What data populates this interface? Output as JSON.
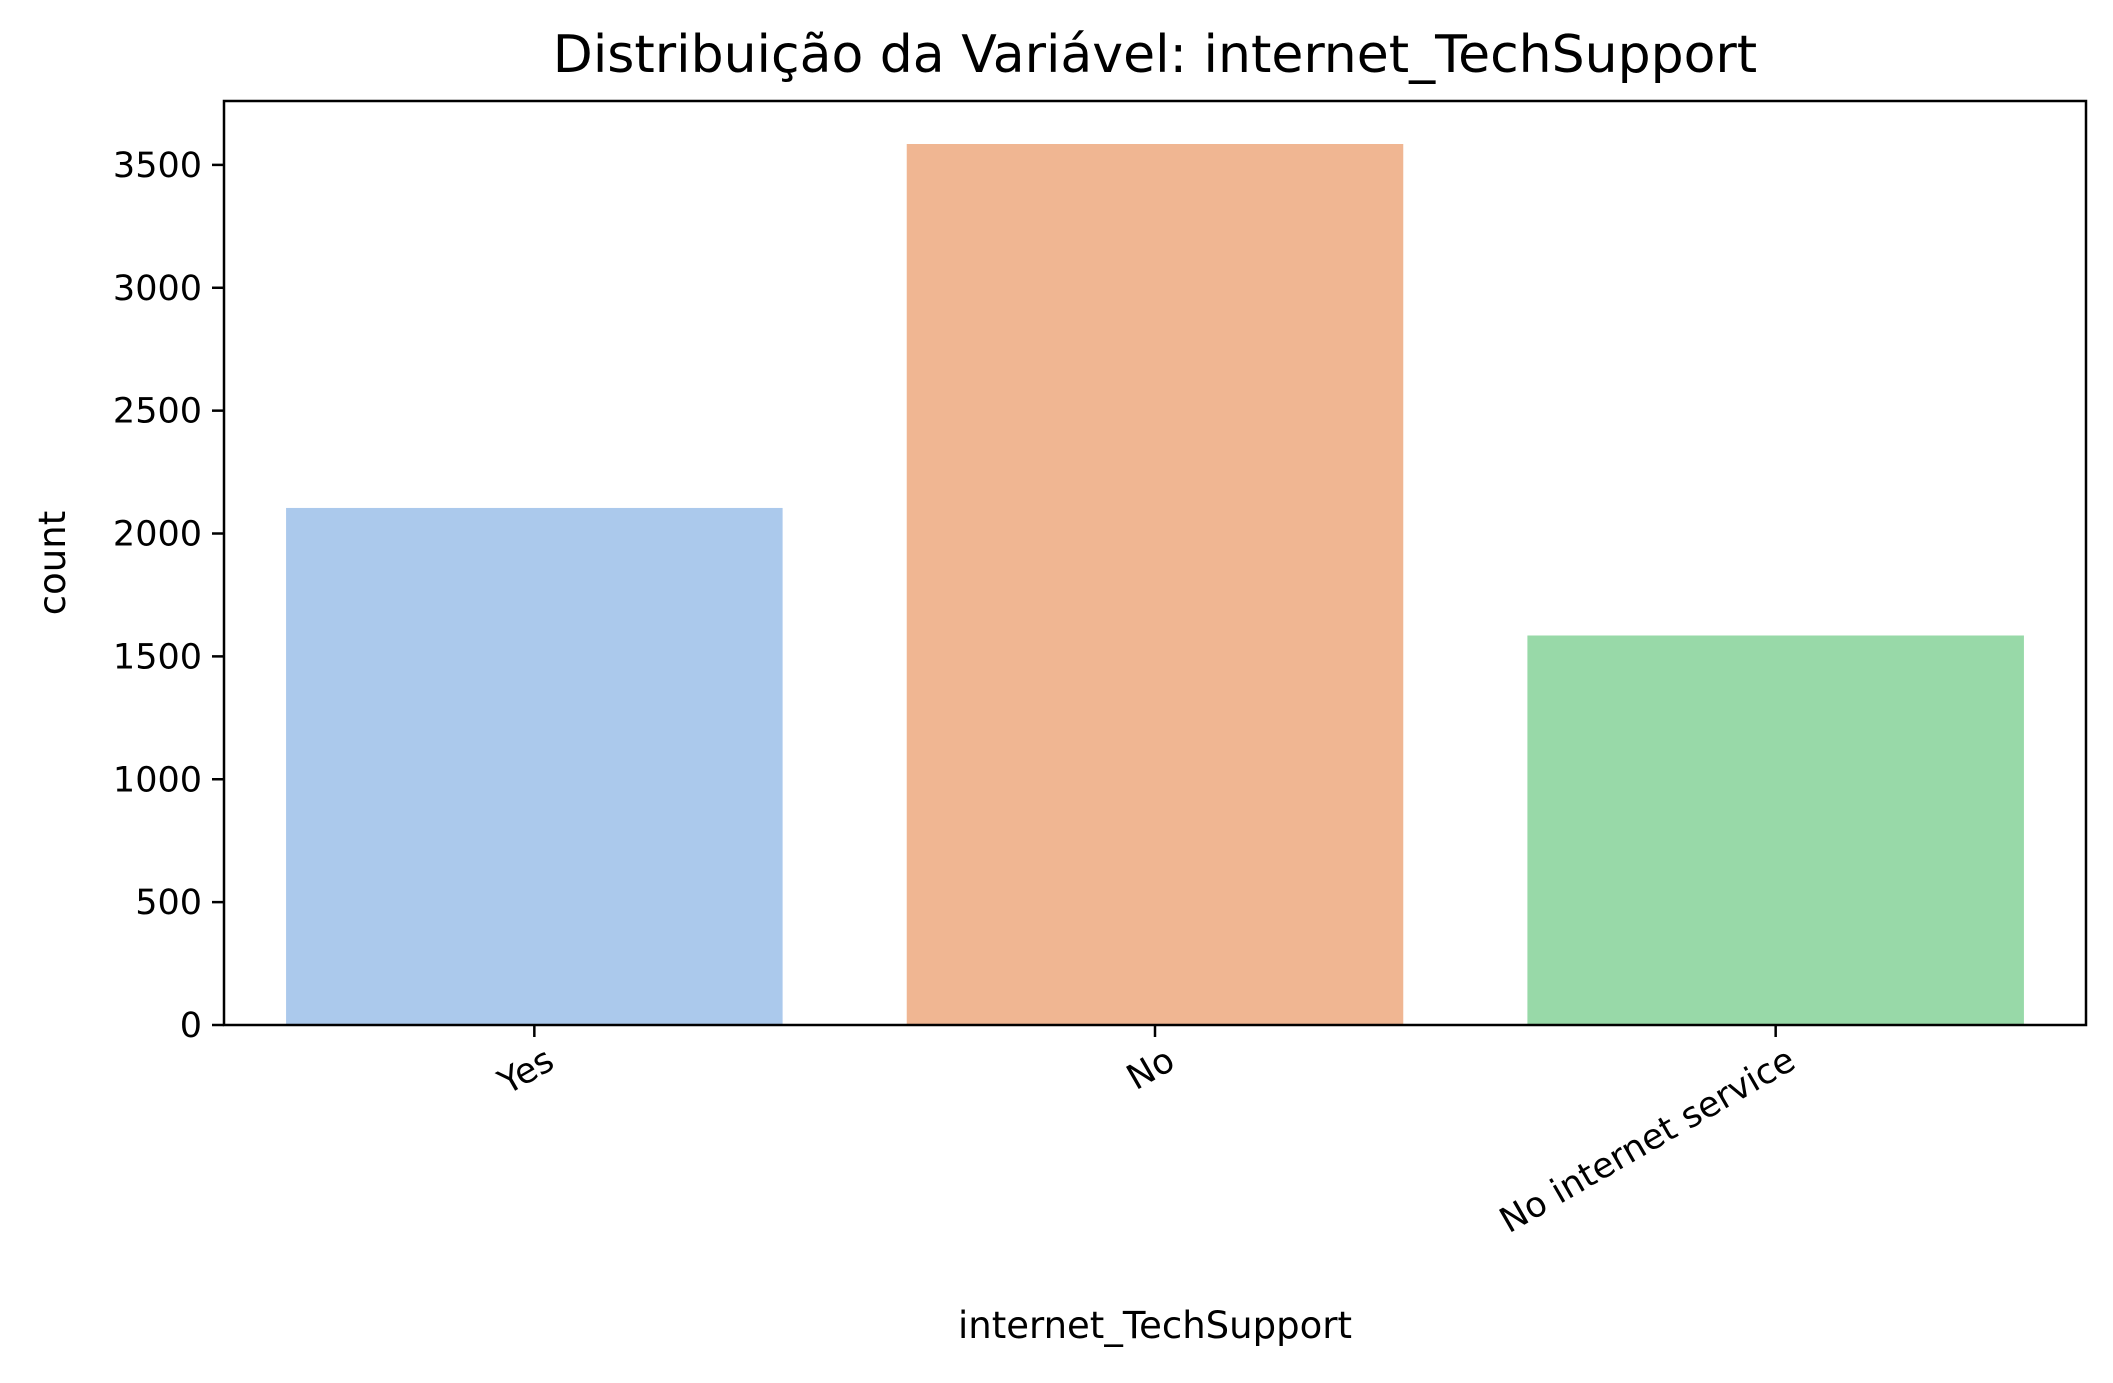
{
  "chart_data": {
    "type": "bar",
    "title": "Distribuição da Variável: internet_TechSupport",
    "xlabel": "internet_TechSupport",
    "ylabel": "count",
    "categories": [
      "Yes",
      "No",
      "No internet service"
    ],
    "values": [
      2104,
      3585,
      1585
    ],
    "colors": [
      "#abc9ec",
      "#f0b692",
      "#98d9a8"
    ],
    "ylim": [
      0,
      3760
    ],
    "yticks": [
      0,
      500,
      1000,
      1500,
      2000,
      2500,
      3000,
      3500
    ],
    "grid": false,
    "legend": "none"
  }
}
